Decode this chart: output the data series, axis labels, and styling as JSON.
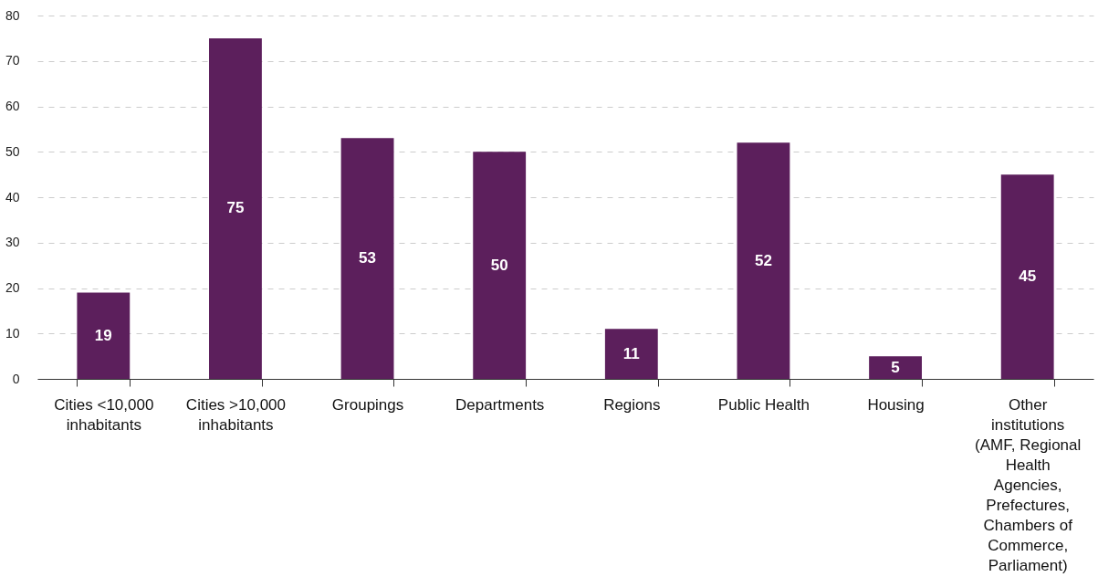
{
  "chart_data": {
    "type": "bar",
    "categories": [
      "Cities <10,000 inhabitants",
      "Cities >10,000 inhabitants",
      "Groupings",
      "Departments",
      "Regions",
      "Public Health",
      "Housing",
      "Other institutions (AMF, Regional Health Agencies, Prefectures, Chambers of Commerce, Parliament)"
    ],
    "values": [
      19,
      75,
      53,
      50,
      11,
      52,
      5,
      45
    ],
    "color": "#5c1f5c",
    "ylim": [
      0,
      80
    ],
    "yticks": [
      0,
      10,
      20,
      30,
      40,
      50,
      60,
      70,
      80
    ],
    "grid": "y",
    "data_labels": true
  }
}
